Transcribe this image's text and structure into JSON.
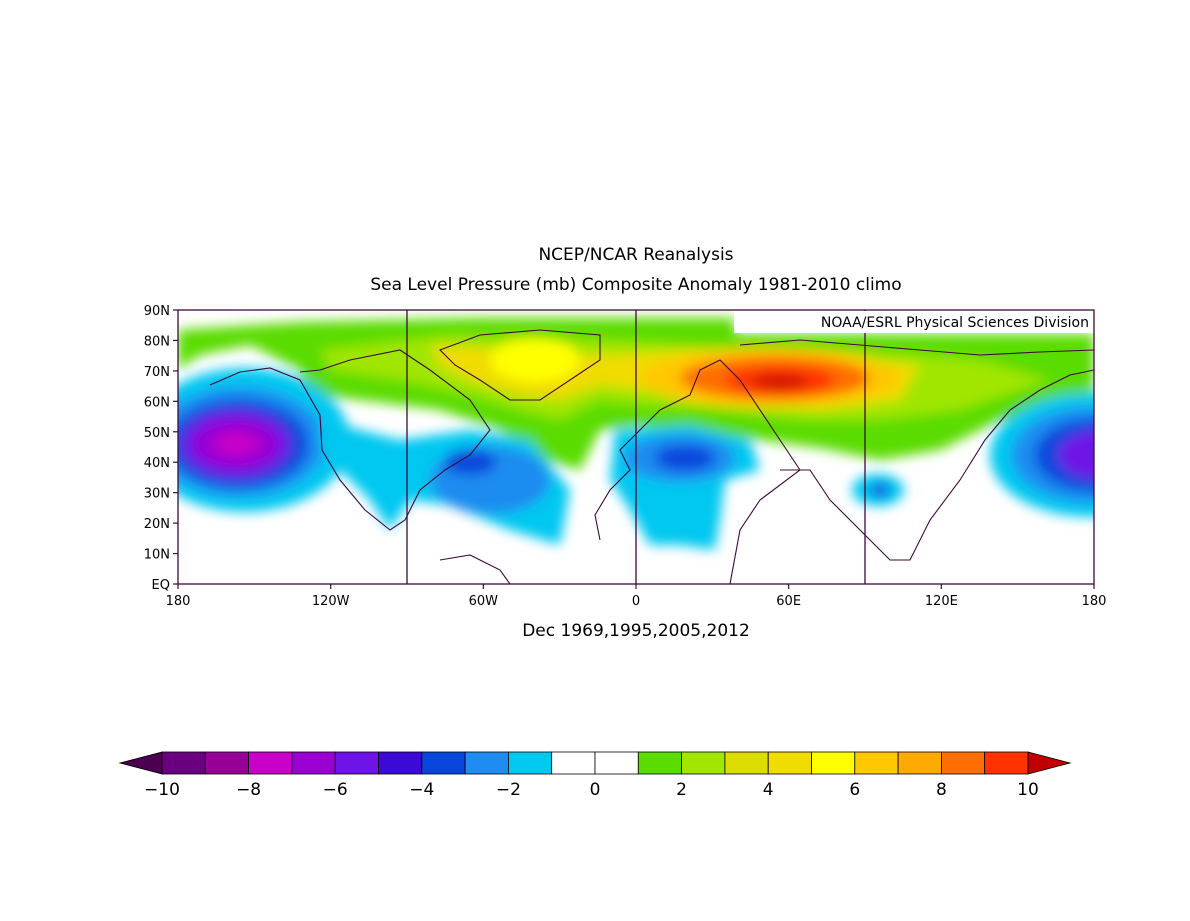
{
  "title": "NCEP/NCAR Reanalysis",
  "subtitle": "Sea Level Pressure (mb) Composite Anomaly 1981-2010 climo",
  "credit": "NOAA/ESRL Physical Sciences Division",
  "caption": "Dec 1969,1995,2005,2012",
  "map": {
    "lon_range": [
      -180,
      180
    ],
    "lat_range": [
      0,
      90
    ],
    "lat_ticks": [
      {
        "value": 90,
        "label": "90N"
      },
      {
        "value": 80,
        "label": "80N"
      },
      {
        "value": 70,
        "label": "70N"
      },
      {
        "value": 60,
        "label": "60N"
      },
      {
        "value": 50,
        "label": "50N"
      },
      {
        "value": 40,
        "label": "40N"
      },
      {
        "value": 30,
        "label": "30N"
      },
      {
        "value": 20,
        "label": "20N"
      },
      {
        "value": 10,
        "label": "10N"
      },
      {
        "value": 0,
        "label": "EQ"
      }
    ],
    "lon_ticks": [
      {
        "value": -180,
        "label": "180"
      },
      {
        "value": -120,
        "label": "120W"
      },
      {
        "value": -60,
        "label": "60W"
      },
      {
        "value": 0,
        "label": "0"
      },
      {
        "value": 60,
        "label": "60E"
      },
      {
        "value": 120,
        "label": "120E"
      },
      {
        "value": 180,
        "label": "180"
      }
    ],
    "meridian_lines": [
      -90,
      0,
      90
    ],
    "anomaly_centers": [
      {
        "name": "north-pacific-low",
        "lon": -155,
        "lat": 47,
        "value": -7.5
      },
      {
        "name": "dateline-pacific-low",
        "lon": 178,
        "lat": 44,
        "value": -6.5
      },
      {
        "name": "atlantic-low",
        "lon": -68,
        "lat": 40,
        "value": -3.5
      },
      {
        "name": "mediterranean-low",
        "lon": 18,
        "lat": 42,
        "value": -3.5
      },
      {
        "name": "tibet-low",
        "lon": 98,
        "lat": 33,
        "value": -3
      },
      {
        "name": "scandinavia-russia-high",
        "lon": 45,
        "lat": 67,
        "value": 9.5
      },
      {
        "name": "greenland-high",
        "lon": -40,
        "lat": 73,
        "value": 5.5
      },
      {
        "name": "siberia-high",
        "lon": 135,
        "lat": 68,
        "value": 4
      },
      {
        "name": "arctic-high",
        "lon": -100,
        "lat": 84,
        "value": 2.5
      }
    ]
  },
  "colorbar": {
    "labels": [
      "-10",
      "-8",
      "-6",
      "-4",
      "-2",
      "0",
      "2",
      "4",
      "6",
      "8",
      "10"
    ],
    "low_arrow_color": "#4b0050",
    "high_arrow_color": "#c00000",
    "colors": [
      "#6a0080",
      "#960096",
      "#c800c8",
      "#9a00d2",
      "#6e14e6",
      "#3c0ad7",
      "#0a46dc",
      "#1e8cf0",
      "#00c8f0",
      "#ffffff",
      "#ffffff",
      "#5adc00",
      "#a0e600",
      "#dcdc00",
      "#f0dc00",
      "#ffff00",
      "#ffc800",
      "#ffaa00",
      "#ff6e00",
      "#ff3200"
    ]
  }
}
